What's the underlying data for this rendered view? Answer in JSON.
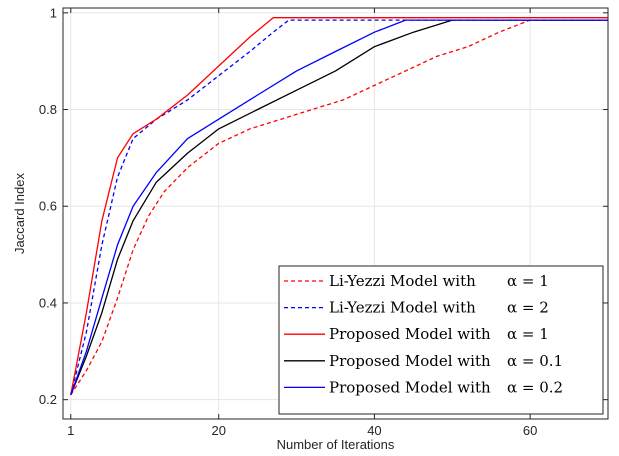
{
  "chart_data": {
    "type": "line",
    "title": "",
    "xlabel": "Number of Iterations",
    "ylabel": "Jaccard Index",
    "xlim": [
      0,
      70
    ],
    "ylim": [
      0.16,
      1.01
    ],
    "xticks": [
      1,
      20,
      40,
      60
    ],
    "xtick_labels": [
      "1",
      "20",
      "40",
      "60"
    ],
    "yticks": [
      0.2,
      0.4,
      0.6,
      0.8,
      1.0
    ],
    "ytick_labels": [
      "0.2",
      "0.4",
      "0.6",
      "0.8",
      "1"
    ],
    "grid": true,
    "legend_position": "bottom-right",
    "series": [
      {
        "name": "Li-Yezzi Model with",
        "alpha_label": "α = 1",
        "color": "#ff0000",
        "dash": "dashed",
        "x": [
          1,
          3,
          5,
          7,
          9,
          11,
          13,
          16,
          20,
          24,
          28,
          32,
          36,
          40,
          44,
          48,
          52,
          56,
          60,
          70
        ],
        "y": [
          0.21,
          0.26,
          0.32,
          0.41,
          0.51,
          0.58,
          0.63,
          0.68,
          0.73,
          0.76,
          0.78,
          0.8,
          0.82,
          0.85,
          0.88,
          0.91,
          0.93,
          0.96,
          0.985,
          0.985
        ]
      },
      {
        "name": "Li-Yezzi Model with",
        "alpha_label": "α = 2",
        "color": "#0000ff",
        "dash": "dashed",
        "x": [
          1,
          3,
          5,
          7,
          9,
          12,
          16,
          20,
          24,
          27,
          29,
          70
        ],
        "y": [
          0.21,
          0.34,
          0.52,
          0.66,
          0.74,
          0.78,
          0.82,
          0.87,
          0.92,
          0.96,
          0.985,
          0.985
        ]
      },
      {
        "name": "Proposed Model with",
        "alpha_label": "α = 1",
        "color": "#ff0000",
        "dash": "solid",
        "x": [
          1,
          3,
          5,
          7,
          9,
          12,
          16,
          20,
          24,
          27,
          70
        ],
        "y": [
          0.21,
          0.38,
          0.57,
          0.7,
          0.75,
          0.78,
          0.83,
          0.89,
          0.95,
          0.99,
          0.99
        ]
      },
      {
        "name": "Proposed Model with",
        "alpha_label": "α = 0.1",
        "color": "#000000",
        "dash": "solid",
        "x": [
          1,
          3,
          5,
          7,
          9,
          12,
          16,
          20,
          25,
          30,
          35,
          40,
          45,
          50,
          70
        ],
        "y": [
          0.21,
          0.29,
          0.38,
          0.49,
          0.57,
          0.65,
          0.71,
          0.76,
          0.8,
          0.84,
          0.88,
          0.93,
          0.96,
          0.985,
          0.985
        ]
      },
      {
        "name": "Proposed Model with",
        "alpha_label": "α = 0.2",
        "color": "#0000ff",
        "dash": "solid",
        "x": [
          1,
          3,
          5,
          7,
          9,
          12,
          16,
          20,
          25,
          30,
          35,
          40,
          44,
          70
        ],
        "y": [
          0.21,
          0.3,
          0.41,
          0.52,
          0.6,
          0.67,
          0.74,
          0.78,
          0.83,
          0.88,
          0.92,
          0.96,
          0.985,
          0.985
        ]
      }
    ]
  }
}
